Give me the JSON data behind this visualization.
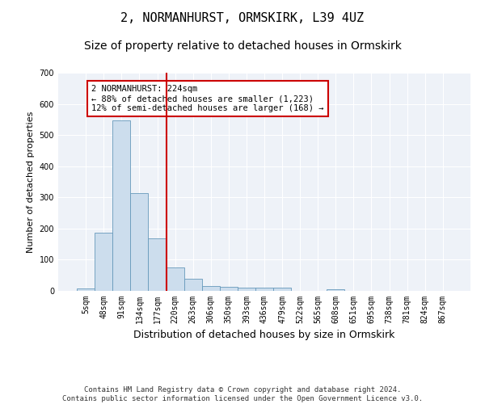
{
  "title": "2, NORMANHURST, ORMSKIRK, L39 4UZ",
  "subtitle": "Size of property relative to detached houses in Ormskirk",
  "xlabel": "Distribution of detached houses by size in Ormskirk",
  "ylabel": "Number of detached properties",
  "bar_labels": [
    "5sqm",
    "48sqm",
    "91sqm",
    "134sqm",
    "177sqm",
    "220sqm",
    "263sqm",
    "306sqm",
    "350sqm",
    "393sqm",
    "436sqm",
    "479sqm",
    "522sqm",
    "565sqm",
    "608sqm",
    "651sqm",
    "695sqm",
    "738sqm",
    "781sqm",
    "824sqm",
    "867sqm"
  ],
  "bar_values": [
    8,
    187,
    547,
    315,
    168,
    75,
    38,
    15,
    14,
    11,
    11,
    11,
    0,
    0,
    5,
    0,
    0,
    0,
    0,
    0,
    0
  ],
  "bar_color": "#ccdded",
  "bar_edge_color": "#6699bb",
  "vline_color": "#cc0000",
  "vline_bin_index": 5,
  "annotation_text": "2 NORMANHURST: 224sqm\n← 88% of detached houses are smaller (1,223)\n12% of semi-detached houses are larger (168) →",
  "annotation_box_facecolor": "#ffffff",
  "annotation_box_edgecolor": "#cc0000",
  "ylim": [
    0,
    700
  ],
  "yticks": [
    0,
    100,
    200,
    300,
    400,
    500,
    600,
    700
  ],
  "footer_text": "Contains HM Land Registry data © Crown copyright and database right 2024.\nContains public sector information licensed under the Open Government Licence v3.0.",
  "bg_color": "#eef2f8",
  "grid_color": "#ffffff",
  "title_fontsize": 11,
  "subtitle_fontsize": 10,
  "ylabel_fontsize": 8,
  "xlabel_fontsize": 9,
  "tick_fontsize": 7,
  "annotation_fontsize": 7.5,
  "footer_fontsize": 6.5
}
